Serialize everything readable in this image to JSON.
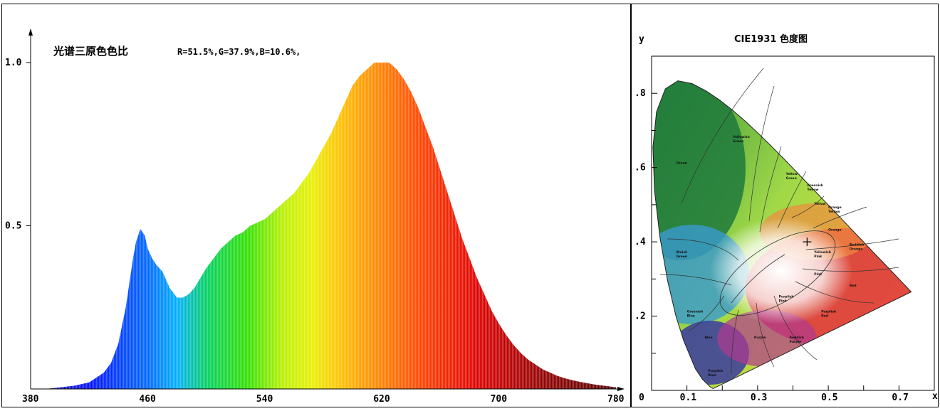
{
  "chart_data": [
    {
      "type": "area",
      "title": "光谱三原色色比",
      "subtitle": "R=51.5%,G=37.9%,B=10.6%,",
      "xlabel": "",
      "ylabel": "",
      "xlim": [
        380,
        780
      ],
      "ylim": [
        0,
        1.0
      ],
      "xticks": [
        "380",
        "460",
        "540",
        "620",
        "700",
        "780"
      ],
      "yticks": [
        "0.5",
        "1.0"
      ],
      "x": [
        380,
        390,
        400,
        410,
        420,
        430,
        435,
        440,
        445,
        450,
        452,
        455,
        458,
        460,
        463,
        466,
        470,
        475,
        480,
        484,
        488,
        492,
        496,
        500,
        505,
        510,
        515,
        520,
        525,
        530,
        535,
        540,
        545,
        550,
        555,
        560,
        565,
        570,
        575,
        580,
        585,
        590,
        595,
        600,
        605,
        610,
        615,
        620,
        625,
        630,
        635,
        640,
        645,
        650,
        655,
        660,
        665,
        670,
        675,
        680,
        685,
        690,
        695,
        700,
        705,
        710,
        715,
        720,
        725,
        730,
        735,
        740,
        745,
        750,
        755,
        760,
        765,
        770,
        775,
        780
      ],
      "y": [
        0.0,
        0.0,
        0.005,
        0.01,
        0.02,
        0.05,
        0.08,
        0.14,
        0.25,
        0.4,
        0.45,
        0.49,
        0.47,
        0.43,
        0.4,
        0.38,
        0.36,
        0.31,
        0.28,
        0.28,
        0.29,
        0.31,
        0.34,
        0.37,
        0.4,
        0.43,
        0.45,
        0.47,
        0.48,
        0.5,
        0.51,
        0.52,
        0.54,
        0.56,
        0.58,
        0.6,
        0.63,
        0.66,
        0.7,
        0.74,
        0.78,
        0.83,
        0.88,
        0.93,
        0.96,
        0.98,
        1.0,
        1.0,
        1.0,
        0.98,
        0.95,
        0.91,
        0.86,
        0.8,
        0.74,
        0.67,
        0.6,
        0.53,
        0.46,
        0.4,
        0.34,
        0.29,
        0.24,
        0.2,
        0.165,
        0.135,
        0.11,
        0.09,
        0.075,
        0.06,
        0.05,
        0.04,
        0.033,
        0.027,
        0.022,
        0.018,
        0.014,
        0.011,
        0.008,
        0.005
      ]
    },
    {
      "type": "scatter",
      "title": "CIE1931 色度图",
      "xlabel": "x",
      "ylabel": "y",
      "xlim": [
        0,
        0.8
      ],
      "ylim": [
        0,
        0.9
      ],
      "xticks": [
        "0",
        "0.1",
        "0.3",
        "0.5",
        "0.7"
      ],
      "yticks": [
        ".2",
        ".4",
        ".6",
        ".8"
      ],
      "point": {
        "x": 0.44,
        "y": 0.4
      },
      "locus": [
        [
          0.1741,
          0.005
        ],
        [
          0.1738,
          0.0049
        ],
        [
          0.1666,
          0.0089
        ],
        [
          0.144,
          0.0297
        ],
        [
          0.1241,
          0.0578
        ],
        [
          0.0913,
          0.1327
        ],
        [
          0.0687,
          0.2007
        ],
        [
          0.0454,
          0.295
        ],
        [
          0.0235,
          0.4127
        ],
        [
          0.0082,
          0.5384
        ],
        [
          0.0039,
          0.6548
        ],
        [
          0.0139,
          0.7502
        ],
        [
          0.0389,
          0.812
        ],
        [
          0.0743,
          0.8338
        ],
        [
          0.1142,
          0.8262
        ],
        [
          0.1547,
          0.8059
        ],
        [
          0.1929,
          0.7816
        ],
        [
          0.2296,
          0.7543
        ],
        [
          0.2658,
          0.7243
        ],
        [
          0.3016,
          0.6923
        ],
        [
          0.3373,
          0.6589
        ],
        [
          0.3731,
          0.6245
        ],
        [
          0.4087,
          0.5896
        ],
        [
          0.4441,
          0.5547
        ],
        [
          0.4788,
          0.5202
        ],
        [
          0.5125,
          0.4866
        ],
        [
          0.5448,
          0.4544
        ],
        [
          0.5752,
          0.4242
        ],
        [
          0.6029,
          0.3965
        ],
        [
          0.627,
          0.3725
        ],
        [
          0.6482,
          0.3514
        ],
        [
          0.6658,
          0.334
        ],
        [
          0.6915,
          0.3083
        ],
        [
          0.7347,
          0.2653
        ]
      ],
      "region_labels": [
        "Green",
        "Yellowish Green",
        "Yellow Green",
        "Greenish Yellow",
        "Yellow",
        "Orange Yellow",
        "Orange",
        "Reddish Orange",
        "Bluish Green",
        "Yellowish Pink",
        "Pink",
        "Red",
        "Purplish Pink",
        "Greenish Blue",
        "Purplish Red",
        "Blue",
        "Purple",
        "Reddish Purple",
        "Purplish Blue"
      ]
    }
  ]
}
